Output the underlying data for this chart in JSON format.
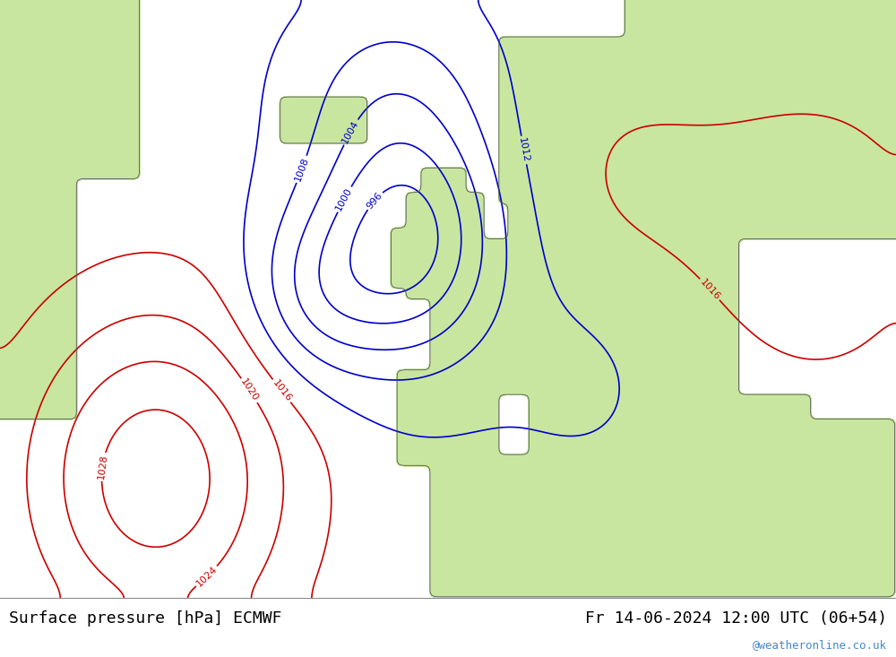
{
  "title_left": "Surface pressure [hPa] ECMWF",
  "title_right": "Fr 14-06-2024 12:00 UTC (06+54)",
  "watermark": "@weatheronline.co.uk",
  "fig_width": 10.0,
  "fig_height": 7.33,
  "bg_color_ocean": "#e8e8e8",
  "bg_color_land": "#c8e6a0",
  "bg_color_land2": "#d4eeaa",
  "bottom_bar_color": "#f0f0f0",
  "title_fontsize": 13,
  "watermark_color": "#4488cc",
  "label_color_black": "#000000",
  "label_color_blue": "#0000cc",
  "label_color_red": "#cc0000"
}
